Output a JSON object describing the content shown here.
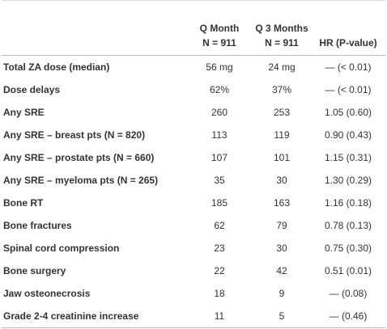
{
  "table": {
    "header": [
      [
        "Q Month",
        "N = 911"
      ],
      [
        "Q 3 Months",
        "N = 911"
      ],
      [
        "HR (P-value)"
      ]
    ],
    "rows": [
      [
        "Total ZA dose (median)",
        "56 mg",
        "24 mg",
        "— (< 0.01)"
      ],
      [
        "Dose delays",
        "62%",
        "37%",
        "— (< 0.01)"
      ],
      [
        "Any SRE",
        "260",
        "253",
        "1.05 (0.60)"
      ],
      [
        "Any SRE – breast pts (N = 820)",
        "113",
        "119",
        "0.90 (0.43)"
      ],
      [
        "Any SRE – prostate pts (N = 660)",
        "107",
        "101",
        "1.15 (0.31)"
      ],
      [
        "Any SRE – myeloma pts (N = 265)",
        "35",
        "30",
        "1.30 (0.29)"
      ],
      [
        "Bone RT",
        "185",
        "163",
        "1.16 (0.18)"
      ],
      [
        "Bone fractures",
        "62",
        "79",
        "0.78 (0.13)"
      ],
      [
        "Spinal cord compression",
        "23",
        "30",
        "0.75 (0.30)"
      ],
      [
        "Bone surgery",
        "22",
        "42",
        "0.51 (0.01)"
      ],
      [
        "Jaw osteonecrosis",
        "18",
        "9",
        "— (0.08)"
      ],
      [
        "Grade 2-4 creatinine increase",
        "11",
        "5",
        "— (0.46)"
      ]
    ]
  }
}
